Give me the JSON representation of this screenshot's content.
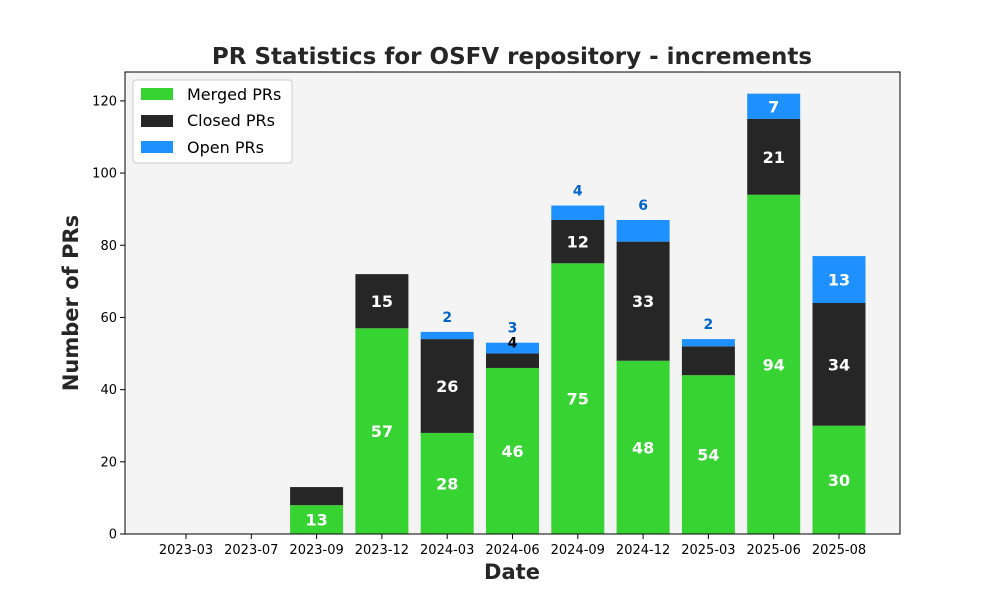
{
  "chart_data": {
    "type": "bar",
    "stacked": true,
    "title": "PR Statistics for OSFV repository - increments",
    "xlabel": "Date",
    "ylabel": "Number of PRs",
    "ylim": [
      0,
      128
    ],
    "yticks": [
      0,
      20,
      40,
      60,
      80,
      100,
      120
    ],
    "categories": [
      "2023-03",
      "2023-07",
      "2023-09",
      "2023-12",
      "2024-03",
      "2024-06",
      "2024-09",
      "2024-12",
      "2025-03",
      "2025-06",
      "2025-08"
    ],
    "series": [
      {
        "name": "Merged PRs",
        "color": "#37d333",
        "values": [
          0,
          0,
          8,
          57,
          28,
          46,
          75,
          48,
          44,
          94,
          30
        ]
      },
      {
        "name": "Closed PRs",
        "color": "#262626",
        "values": [
          0,
          0,
          5,
          15,
          26,
          4,
          12,
          33,
          8,
          21,
          34
        ]
      },
      {
        "name": "Open PRs",
        "color": "#1e90ff",
        "values": [
          0,
          0,
          0,
          0,
          2,
          3,
          4,
          6,
          2,
          7,
          13
        ]
      }
    ],
    "data_labels": {
      "merged": [
        "",
        "",
        "13",
        "57",
        "28",
        "46",
        "75",
        "48",
        "54",
        "94",
        "30"
      ],
      "closed": [
        "",
        "",
        "",
        "15",
        "26",
        "4",
        "12",
        "33",
        "",
        "21",
        "34"
      ],
      "open": [
        "",
        "",
        "",
        "",
        "2",
        "3",
        "4",
        "6",
        "2",
        "7",
        "13"
      ]
    },
    "grid": false,
    "legend_position": "top-left",
    "plot_background": "#f4f4f4",
    "label_colors": {
      "inside": "#ffffff",
      "outside_closed": "#000000",
      "outside_open": "#0066cc"
    }
  }
}
